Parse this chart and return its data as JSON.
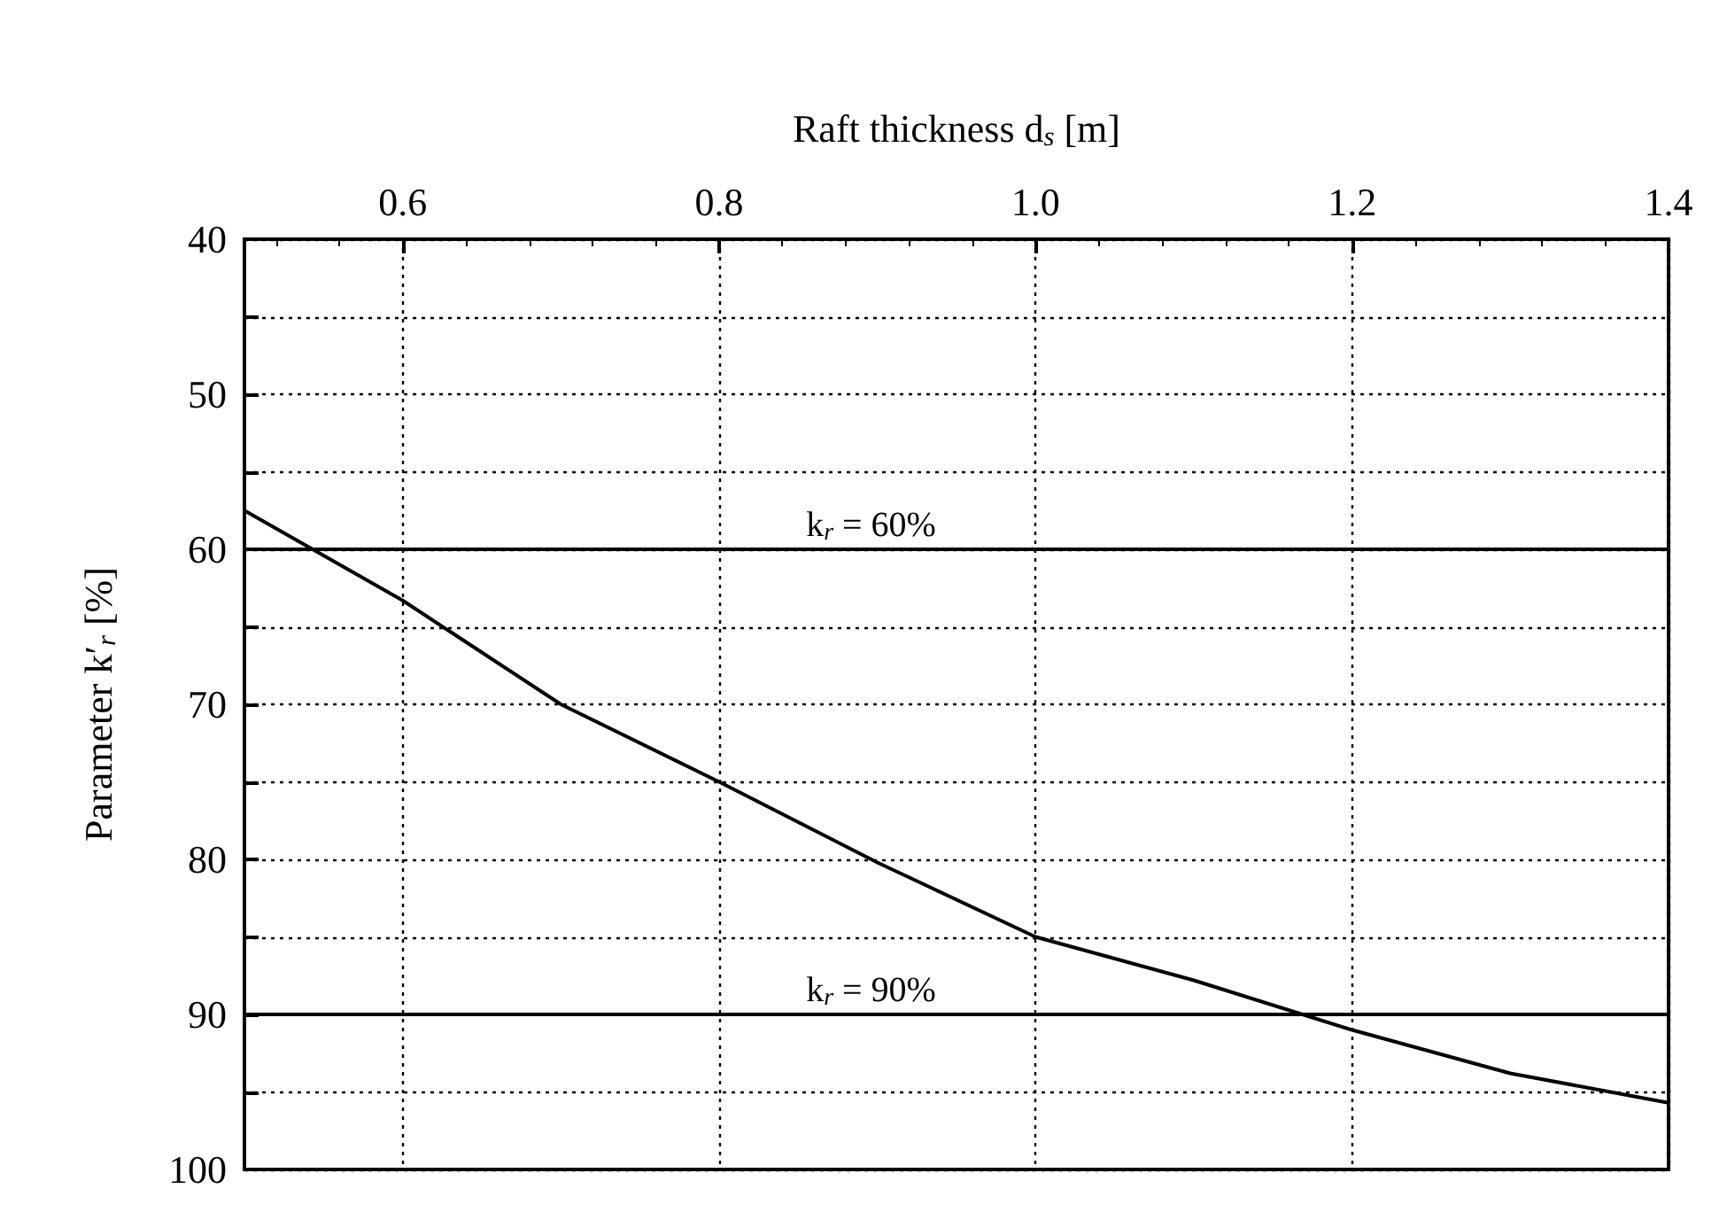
{
  "chart_data": {
    "type": "line",
    "xlabel": "Raft thickness d$_{s}$ [m]",
    "ylabel": "Parameter k′$_{r}$ [%]",
    "x": [
      0.5,
      0.6,
      0.7,
      0.8,
      0.9,
      1.0,
      1.1,
      1.2,
      1.3,
      1.4
    ],
    "series": [
      {
        "color": "#000000",
        "values": [
          57.5,
          63.3,
          70,
          75,
          80.2,
          85,
          87.8,
          91,
          93.8,
          95.7
        ]
      }
    ],
    "xlim": [
      0.5,
      1.4
    ],
    "xticks": [
      0.6,
      0.8,
      {
        "value": 1,
        "label": "1.0"
      },
      1.2,
      1.4
    ],
    "ylim": [
      100,
      40
    ],
    "yticks": [
      40,
      {
        "value": 45,
        "label": null
      },
      50,
      {
        "value": 55,
        "label": null
      },
      60,
      {
        "value": 65,
        "label": null
      },
      70,
      {
        "value": 75,
        "label": null
      },
      80,
      {
        "value": 85,
        "label": null
      },
      90,
      {
        "value": 95,
        "label": null
      },
      100
    ],
    "ref_lines": [
      {
        "axis": "y",
        "value": 60,
        "label": "k$_{r}$ = 60%",
        "color": "#000000"
      },
      {
        "axis": "y",
        "value": 90,
        "label": "k$_{r}$ = 90%",
        "color": "#000000"
      }
    ],
    "grid": true,
    "marker": "none",
    "line_style": "solid"
  }
}
